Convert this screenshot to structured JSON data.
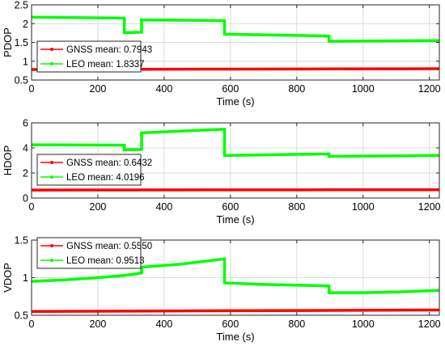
{
  "chart_data": [
    {
      "type": "line",
      "xlabel": "Time (s)",
      "ylabel": "PDOP",
      "xlim": [
        0,
        1230
      ],
      "ylim": [
        0.5,
        2.5
      ],
      "xticks": [
        0,
        200,
        400,
        600,
        800,
        1000,
        1200
      ],
      "yticks": [
        0.5,
        1,
        1.5,
        2,
        2.5
      ],
      "ytick_labels": [
        "0.5",
        "1",
        "1.5",
        "2",
        "2.5"
      ],
      "grid": true,
      "legend": "left",
      "series": [
        {
          "name": "GNSS mean: 0.7943",
          "color": "#ff0000",
          "x": [
            0,
            300,
            600,
            900,
            1230
          ],
          "y": [
            0.78,
            0.785,
            0.79,
            0.795,
            0.8
          ]
        },
        {
          "name": "LEO mean: 1.8337",
          "color": "#00ff00",
          "x": [
            0,
            280,
            280,
            332,
            332,
            582,
            582,
            897,
            897,
            1230
          ],
          "y": [
            2.17,
            2.15,
            1.76,
            1.77,
            2.1,
            2.08,
            1.72,
            1.67,
            1.53,
            1.55
          ]
        }
      ]
    },
    {
      "type": "line",
      "xlabel": "Time (s)",
      "ylabel": "HDOP",
      "xlim": [
        0,
        1230
      ],
      "ylim": [
        0,
        6
      ],
      "xticks": [
        0,
        200,
        400,
        600,
        800,
        1000,
        1200
      ],
      "yticks": [
        0,
        2,
        4,
        6
      ],
      "ytick_labels": [
        "0",
        "2",
        "4",
        "6"
      ],
      "grid": true,
      "legend": "left",
      "series": [
        {
          "name": "GNSS mean: 0.6432",
          "color": "#ff0000",
          "x": [
            0,
            300,
            600,
            900,
            1230
          ],
          "y": [
            0.64,
            0.645,
            0.65,
            0.655,
            0.66
          ]
        },
        {
          "name": "LEO mean: 4.0196",
          "color": "#00ff00",
          "x": [
            0,
            280,
            280,
            332,
            332,
            582,
            582,
            897,
            897,
            1230
          ],
          "y": [
            4.25,
            4.22,
            3.85,
            3.88,
            5.2,
            5.5,
            3.4,
            3.52,
            3.32,
            3.4
          ]
        }
      ]
    },
    {
      "type": "line",
      "xlabel": "Time (s)",
      "ylabel": "VDOP",
      "xlim": [
        0,
        1230
      ],
      "ylim": [
        0.5,
        1.5
      ],
      "xticks": [
        0,
        200,
        400,
        600,
        800,
        1000,
        1200
      ],
      "yticks": [
        0.5,
        1,
        1.5
      ],
      "ytick_labels": [
        "0.5",
        "1",
        "1.5"
      ],
      "grid": true,
      "legend": "top-left",
      "series": [
        {
          "name": "GNSS mean: 0.5550",
          "color": "#ff0000",
          "x": [
            0,
            300,
            600,
            900,
            1230
          ],
          "y": [
            0.55,
            0.555,
            0.56,
            0.565,
            0.57
          ]
        },
        {
          "name": "LEO mean: 0.9513",
          "color": "#00ff00",
          "x": [
            0,
            100,
            200,
            280,
            332,
            332,
            450,
            582,
            582,
            700,
            897,
            897,
            1000,
            1100,
            1230
          ],
          "y": [
            0.95,
            0.97,
            1.0,
            1.03,
            1.06,
            1.14,
            1.18,
            1.25,
            0.93,
            0.91,
            0.89,
            0.8,
            0.8,
            0.81,
            0.83
          ]
        }
      ]
    }
  ]
}
